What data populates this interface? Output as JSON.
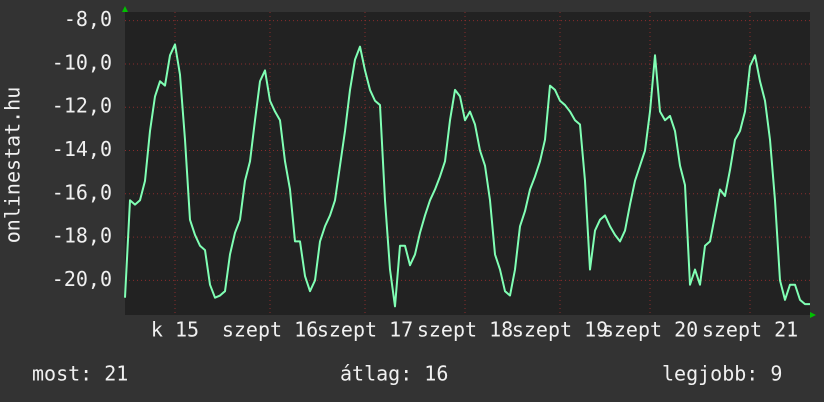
{
  "chart_data": {
    "type": "line",
    "y_label": "onlinestat.hu",
    "x": [
      0,
      1,
      2,
      3,
      4,
      5,
      6,
      7,
      8,
      9,
      10,
      11,
      12,
      13,
      14,
      15,
      16,
      17,
      18,
      19,
      20,
      21,
      22,
      23,
      24,
      25,
      26,
      27,
      28,
      29,
      30,
      31,
      32,
      33,
      34,
      35,
      36,
      37,
      38,
      39,
      40,
      41,
      42,
      43,
      44,
      45,
      46,
      47,
      48,
      49,
      50,
      51,
      52,
      53,
      54,
      55,
      56,
      57,
      58,
      59,
      60,
      61,
      62,
      63,
      64,
      65,
      66,
      67,
      68,
      69,
      70,
      71,
      72,
      73,
      74,
      75,
      76,
      77,
      78,
      79,
      80,
      81,
      82,
      83,
      84,
      85,
      86,
      87,
      88,
      89,
      90,
      91,
      92,
      93,
      94,
      95,
      96,
      97,
      98,
      99,
      100,
      101,
      102,
      103,
      104,
      105,
      106,
      107,
      108,
      109,
      110,
      111,
      112,
      113,
      114,
      115,
      116,
      117,
      118,
      119,
      120,
      121,
      122,
      123,
      124,
      125,
      126,
      127,
      128,
      129,
      130,
      131,
      132,
      133,
      134,
      135,
      136,
      137
    ],
    "series": [
      {
        "color": "#80ffb4",
        "values": [
          -20.8,
          -16.3,
          -16.5,
          -16.3,
          -15.4,
          -13.1,
          -11.5,
          -10.8,
          -11.0,
          -9.6,
          -9.1,
          -10.5,
          -13.5,
          -17.2,
          -17.9,
          -18.4,
          -18.6,
          -20.2,
          -20.8,
          -20.7,
          -20.5,
          -18.8,
          -17.8,
          -17.2,
          -15.4,
          -14.5,
          -12.6,
          -10.8,
          -10.3,
          -11.7,
          -12.2,
          -12.6,
          -14.5,
          -15.8,
          -18.2,
          -18.2,
          -19.8,
          -20.5,
          -20.0,
          -18.2,
          -17.5,
          -17.0,
          -16.3,
          -14.7,
          -13.1,
          -11.2,
          -9.8,
          -9.2,
          -10.3,
          -11.2,
          -11.7,
          -11.9,
          -16.3,
          -19.5,
          -21.2,
          -18.4,
          -18.4,
          -19.3,
          -18.8,
          -17.8,
          -17.0,
          -16.3,
          -15.8,
          -15.2,
          -14.5,
          -12.6,
          -11.2,
          -11.5,
          -12.6,
          -12.2,
          -12.8,
          -14.0,
          -14.7,
          -16.3,
          -18.8,
          -19.5,
          -20.5,
          -20.7,
          -19.5,
          -17.5,
          -16.8,
          -15.8,
          -15.2,
          -14.5,
          -13.5,
          -11.0,
          -11.2,
          -11.7,
          -11.9,
          -12.2,
          -12.6,
          -12.8,
          -15.4,
          -19.5,
          -17.7,
          -17.2,
          -17.0,
          -17.5,
          -17.9,
          -18.2,
          -17.7,
          -16.5,
          -15.4,
          -14.7,
          -14.0,
          -12.2,
          -9.6,
          -12.2,
          -12.6,
          -12.4,
          -13.1,
          -14.7,
          -15.6,
          -20.2,
          -19.5,
          -20.2,
          -18.4,
          -18.2,
          -17.0,
          -15.8,
          -16.1,
          -14.9,
          -13.5,
          -13.1,
          -12.2,
          -10.1,
          -9.6,
          -10.8,
          -11.7,
          -13.5,
          -16.3,
          -20.0,
          -20.9,
          -20.2,
          -20.2,
          -20.9,
          -21.1,
          -21.1
        ]
      }
    ],
    "xlim": [
      0,
      137
    ],
    "xticks": [
      {
        "value": 10,
        "label": "k 15"
      },
      {
        "value": 29,
        "label": "szept 16"
      },
      {
        "value": 48,
        "label": "szept 17"
      },
      {
        "value": 68,
        "label": "szept 18"
      },
      {
        "value": 87,
        "label": "szept 19"
      },
      {
        "value": 105,
        "label": "szept 20"
      },
      {
        "value": 125,
        "label": "szept 21"
      }
    ],
    "ylim": [
      -21.6,
      -7.6
    ],
    "yticks": [
      {
        "value": -8,
        "label": "-8,0"
      },
      {
        "value": -10,
        "label": "-10,0"
      },
      {
        "value": -12,
        "label": "-12,0"
      },
      {
        "value": -14,
        "label": "-14,0"
      },
      {
        "value": -16,
        "label": "-16,0"
      },
      {
        "value": -18,
        "label": "-18,0"
      },
      {
        "value": -20,
        "label": "-20,0"
      }
    ],
    "grid": true,
    "footer": {
      "current": "most: 21",
      "average": "átlag: 16",
      "best": "legjobb: 9"
    }
  }
}
